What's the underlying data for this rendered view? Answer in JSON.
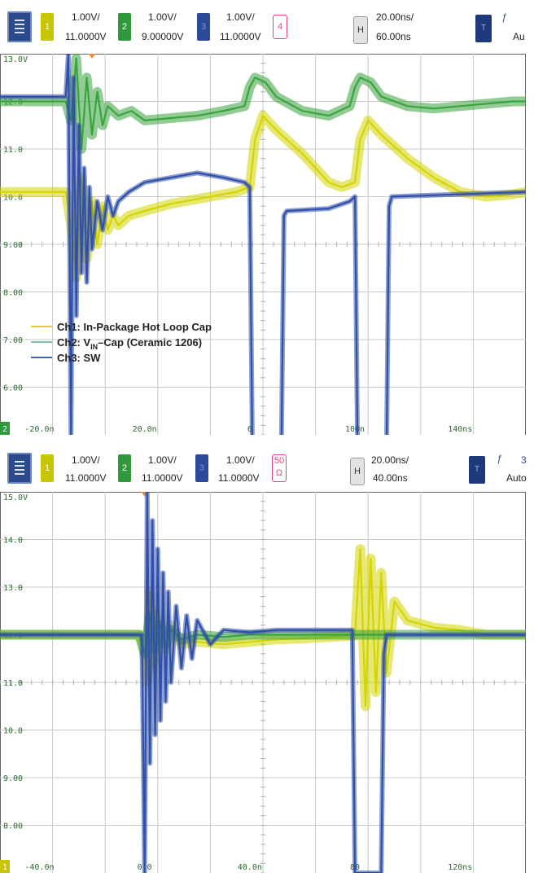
{
  "chart_data": [
    {
      "type": "line",
      "title": "",
      "toolbar": {
        "channels": [
          {
            "number": "1",
            "scale": "1.00V/",
            "offset": "11.0000V",
            "color": "#c8c600"
          },
          {
            "number": "2",
            "scale": "1.00V/",
            "offset": "9.00000V",
            "color": "#2e9a3c"
          },
          {
            "number": "3",
            "scale": "1.00V/",
            "offset": "11.0000V",
            "color": "#2b4a9a"
          }
        ],
        "math_label": "4",
        "math_color": "#e0457b",
        "horizontal_button": "H",
        "timebase": "20.00ns/",
        "delay": "60.00ns",
        "trigger_button": "T",
        "trigger_mode": "Au"
      },
      "xlim": [
        -35,
        165
      ],
      "ylim": [
        5.0,
        13.0
      ],
      "x_unit": "ns",
      "y_tick_labels": [
        "13.0V",
        "12.0",
        "11.0",
        "10.0",
        "9.00",
        "8.00",
        "7.00",
        "6.00"
      ],
      "y_ticks": [
        13,
        12,
        11,
        10,
        9,
        8,
        7,
        6
      ],
      "x_tick_labels": [
        "-20.0n",
        "20.0n",
        "6",
        "100n",
        "140ns"
      ],
      "x_ticks": [
        -20,
        20,
        60,
        100,
        140
      ],
      "ground_marker": "2",
      "legend": [
        {
          "name": "Ch1: In-Package Hot Loop Cap",
          "color": "#e8c440"
        },
        {
          "name_main": "Ch2: V",
          "name_sub": "IN",
          "name_rest": "–Cap (Ceramic 1206)",
          "color": "#7fc3a6"
        },
        {
          "name": "Ch3: SW",
          "color": "#3a67b6"
        }
      ],
      "series": [
        {
          "name": "Ch1: In-Package Hot Loop Cap",
          "color": "#d4d400",
          "x": [
            -35,
            -10,
            -8,
            -6,
            -4,
            -2,
            0,
            2,
            4,
            6,
            8,
            10,
            14,
            20,
            30,
            40,
            50,
            55,
            60,
            62,
            65,
            70,
            80,
            90,
            95,
            100,
            102,
            105,
            110,
            120,
            130,
            140,
            150,
            160,
            165
          ],
          "y": [
            10.1,
            10.1,
            9.4,
            8.3,
            10.4,
            8.7,
            9.9,
            9.0,
            9.8,
            9.3,
            9.6,
            9.4,
            9.6,
            9.7,
            9.85,
            9.95,
            10.05,
            10.1,
            10.2,
            11.2,
            11.7,
            11.4,
            10.9,
            10.3,
            10.2,
            10.3,
            11.2,
            11.6,
            11.3,
            10.8,
            10.4,
            10.1,
            10.0,
            10.05,
            10.1
          ]
        },
        {
          "name": "Ch2: VIN–Cap (Ceramic 1206)",
          "color": "#39a33d",
          "x": [
            -35,
            -10,
            -8,
            -6,
            -4,
            -2,
            0,
            2,
            4,
            6,
            10,
            15,
            20,
            30,
            40,
            50,
            58,
            60,
            62,
            66,
            70,
            80,
            90,
            98,
            100,
            102,
            106,
            110,
            120,
            130,
            140,
            150,
            160,
            165
          ],
          "y": [
            12.0,
            12.0,
            11.6,
            12.9,
            11.0,
            12.5,
            11.3,
            12.2,
            11.5,
            11.9,
            11.7,
            11.8,
            11.6,
            11.65,
            11.7,
            11.8,
            11.9,
            12.3,
            12.5,
            12.4,
            12.1,
            11.8,
            11.7,
            11.9,
            12.3,
            12.5,
            12.4,
            12.1,
            11.9,
            11.85,
            11.9,
            11.95,
            12.0,
            12.0
          ]
        },
        {
          "name": "Ch3: SW",
          "color": "#2f4fa8",
          "x": [
            -35,
            -10,
            -9,
            -8,
            -7,
            -6,
            -5,
            -4,
            -3,
            -2,
            -1,
            0,
            2,
            4,
            6,
            8,
            10,
            14,
            20,
            30,
            40,
            50,
            58,
            60,
            61,
            62,
            72,
            73,
            74,
            90,
            98,
            100,
            101,
            102,
            112,
            113,
            114,
            165
          ],
          "y": [
            12.1,
            12.1,
            13.0,
            5.0,
            12.5,
            7.5,
            11.5,
            8.4,
            10.6,
            8.2,
            10.2,
            8.9,
            9.9,
            9.3,
            10.0,
            9.6,
            9.9,
            10.1,
            10.3,
            10.4,
            10.5,
            10.4,
            10.3,
            10.2,
            4.6,
            4.6,
            4.6,
            9.6,
            9.7,
            9.75,
            9.9,
            10.0,
            4.6,
            4.6,
            4.6,
            9.8,
            10.0,
            10.1
          ]
        }
      ]
    },
    {
      "type": "line",
      "title": "",
      "toolbar": {
        "channels": [
          {
            "number": "1",
            "scale": "1.00V/",
            "offset": "11.0000V",
            "color": "#c8c600"
          },
          {
            "number": "2",
            "scale": "1.00V/",
            "offset": "11.0000V",
            "color": "#2e9a3c"
          },
          {
            "number": "3",
            "scale": "1.00V/",
            "offset": "11.0000V",
            "color": "#2b4a9a"
          }
        ],
        "math_label": "50",
        "math_label_2": "Ω",
        "math_color": "#e0457b",
        "horizontal_button": "H",
        "timebase": "20.00ns/",
        "delay": "40.00ns",
        "trigger_button": "T",
        "trigger_mode": "Auto",
        "trigger_level_fragment": "3"
      },
      "xlim": [
        -55,
        145
      ],
      "ylim": [
        7.0,
        15.0
      ],
      "x_unit": "ns",
      "y_tick_labels": [
        "15.0V",
        "14.0",
        "13.0",
        "12.0",
        "11.0",
        "10.0",
        "9.00",
        "8.00"
      ],
      "y_ticks": [
        15,
        14,
        13,
        12,
        11,
        10,
        9,
        8
      ],
      "x_tick_labels": [
        "-40.0n",
        "0.0",
        "40.0n",
        "80",
        "120ns"
      ],
      "x_ticks": [
        -40,
        0,
        40,
        80,
        120
      ],
      "ground_marker": "1",
      "series": [
        {
          "name": "Ch1",
          "color": "#d4d400",
          "x": [
            -55,
            -2,
            0,
            1,
            2,
            3,
            4,
            5,
            6,
            8,
            10,
            14,
            20,
            30,
            40,
            50,
            60,
            70,
            80,
            82,
            84,
            86,
            88,
            90,
            92,
            95,
            100,
            110,
            120,
            130,
            145
          ],
          "y": [
            12.0,
            12.0,
            11.7,
            11.0,
            12.9,
            11.3,
            12.5,
            11.5,
            12.3,
            11.7,
            12.2,
            11.8,
            11.85,
            11.8,
            11.85,
            11.9,
            11.92,
            11.95,
            11.98,
            13.8,
            10.5,
            13.6,
            10.8,
            13.3,
            11.2,
            12.7,
            12.3,
            12.15,
            12.1,
            12.0,
            12.0
          ]
        },
        {
          "name": "Ch2",
          "color": "#39a33d",
          "x": [
            -55,
            -2,
            0,
            2,
            4,
            6,
            8,
            10,
            14,
            20,
            30,
            40,
            60,
            80,
            100,
            145
          ],
          "y": [
            12.0,
            12.0,
            11.6,
            12.4,
            11.7,
            12.2,
            11.8,
            12.1,
            11.9,
            12.0,
            11.95,
            12.0,
            12.0,
            12.0,
            12.0,
            12.0
          ]
        },
        {
          "name": "Ch3",
          "color": "#2f4fa8",
          "x": [
            -55,
            -1,
            0,
            1,
            2,
            3,
            4,
            5,
            6,
            7,
            8,
            9,
            10,
            12,
            14,
            16,
            18,
            20,
            25,
            30,
            40,
            50,
            60,
            70,
            79,
            80,
            81,
            90,
            91,
            92,
            100,
            145
          ],
          "y": [
            12.0,
            12.0,
            7.0,
            15.0,
            9.3,
            14.4,
            9.9,
            13.8,
            10.2,
            13.3,
            10.6,
            12.9,
            11.0,
            12.6,
            11.3,
            12.4,
            11.5,
            12.3,
            11.8,
            12.1,
            12.05,
            12.1,
            12.1,
            12.1,
            12.1,
            7.0,
            7.0,
            7.0,
            11.6,
            12.0,
            12.0,
            12.0
          ]
        }
      ]
    }
  ]
}
